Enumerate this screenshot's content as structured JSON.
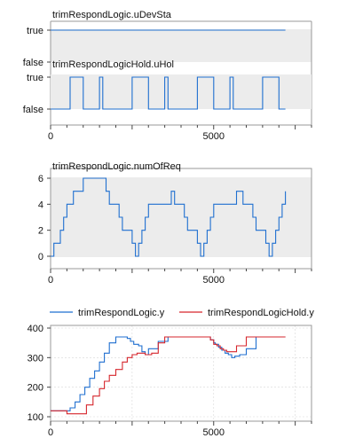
{
  "chart_data": [
    {
      "type": "line",
      "title": "trimRespondLogic.uDevSta",
      "step": true,
      "x": [
        0,
        7200
      ],
      "values": [
        1,
        1
      ],
      "yticklabels": [
        "false",
        "true"
      ],
      "xlim": [
        0,
        8000
      ],
      "xticks": [
        0,
        5000
      ],
      "color": "#1f6fd0"
    },
    {
      "type": "line",
      "title": "trimRespondLogicHold.uHol",
      "step": true,
      "x": [
        0,
        600,
        1000,
        1500,
        1600,
        2500,
        3000,
        3500,
        3600,
        4500,
        5000,
        5500,
        5600,
        6500,
        7000,
        7200
      ],
      "values": [
        0,
        1,
        0,
        1,
        0,
        1,
        0,
        1,
        0,
        1,
        0,
        1,
        0,
        1,
        0,
        0
      ],
      "yticklabels": [
        "false",
        "true"
      ],
      "xlim": [
        0,
        8000
      ],
      "xticks": [
        0,
        5000
      ],
      "xticklabels": [
        "0",
        "5000"
      ],
      "color": "#1f6fd0"
    },
    {
      "type": "line",
      "title": "trimRespondLogic.numOfReq",
      "step": true,
      "x": [
        0,
        100,
        300,
        400,
        500,
        600,
        700,
        900,
        1000,
        1700,
        1800,
        1900,
        2100,
        2200,
        2300,
        2500,
        2600,
        2700,
        2800,
        2900,
        3000,
        3700,
        3800,
        3900,
        4100,
        4200,
        4300,
        4500,
        4600,
        4700,
        4800,
        4900,
        5000,
        5700,
        5800,
        5900,
        6100,
        6200,
        6300,
        6500,
        6600,
        6700,
        6800,
        6900,
        7000,
        7100,
        7200
      ],
      "values": [
        0,
        1,
        2,
        3,
        4,
        4,
        5,
        5,
        6,
        5,
        4,
        4,
        3,
        2,
        2,
        1,
        0,
        1,
        2,
        3,
        4,
        5,
        4,
        4,
        3,
        2,
        2,
        1,
        0,
        1,
        2,
        3,
        4,
        5,
        5,
        4,
        4,
        3,
        2,
        2,
        1,
        0,
        1,
        2,
        3,
        4,
        5
      ],
      "ylim": [
        0,
        6
      ],
      "yticks": [
        0,
        2,
        4,
        6
      ],
      "xlim": [
        0,
        8000
      ],
      "xticks": [
        0,
        5000
      ],
      "xticklabels": [
        "0",
        "5000"
      ],
      "color": "#1f6fd0"
    },
    {
      "type": "line",
      "step": true,
      "xlim": [
        0,
        8000
      ],
      "ylim": [
        100,
        400
      ],
      "yticks": [
        100,
        200,
        300,
        400
      ],
      "xticks": [
        0,
        5000
      ],
      "xticklabels": [
        "0",
        "5000"
      ],
      "legend": "top",
      "series": [
        {
          "name": "trimRespondLogic.y",
          "color": "#1f6fd0",
          "x": [
            0,
            450,
            600,
            750,
            900,
            1050,
            1200,
            1350,
            1500,
            1650,
            1800,
            2000,
            2100,
            2200,
            2300,
            2350,
            2450,
            2550,
            2700,
            2800,
            2900,
            3000,
            3300,
            3600,
            4000,
            4500,
            4800,
            4900,
            5000,
            5050,
            5150,
            5250,
            5350,
            5450,
            5550,
            5650,
            5800,
            6000,
            6300,
            6600,
            7200
          ],
          "values": [
            120,
            120,
            130,
            150,
            175,
            200,
            230,
            255,
            285,
            315,
            350,
            370,
            370,
            370,
            370,
            365,
            355,
            345,
            340,
            320,
            310,
            330,
            355,
            370,
            370,
            370,
            370,
            360,
            350,
            345,
            335,
            325,
            315,
            310,
            300,
            305,
            310,
            330,
            370,
            370,
            370
          ]
        },
        {
          "name": "trimRespondLogicHold.y",
          "color": "#d6262c",
          "x": [
            0,
            500,
            800,
            1100,
            1300,
            1500,
            1650,
            1800,
            2000,
            2200,
            2350,
            2500,
            2650,
            2900,
            3100,
            3300,
            3500,
            3700,
            4500,
            4900,
            5000,
            5100,
            5200,
            5300,
            5400,
            5500,
            5700,
            6000,
            6300,
            6600,
            7200
          ],
          "values": [
            120,
            110,
            110,
            140,
            170,
            195,
            220,
            240,
            260,
            285,
            300,
            310,
            315,
            310,
            315,
            350,
            370,
            370,
            370,
            360,
            345,
            340,
            330,
            325,
            320,
            320,
            340,
            370,
            370,
            370,
            370
          ]
        }
      ]
    }
  ]
}
